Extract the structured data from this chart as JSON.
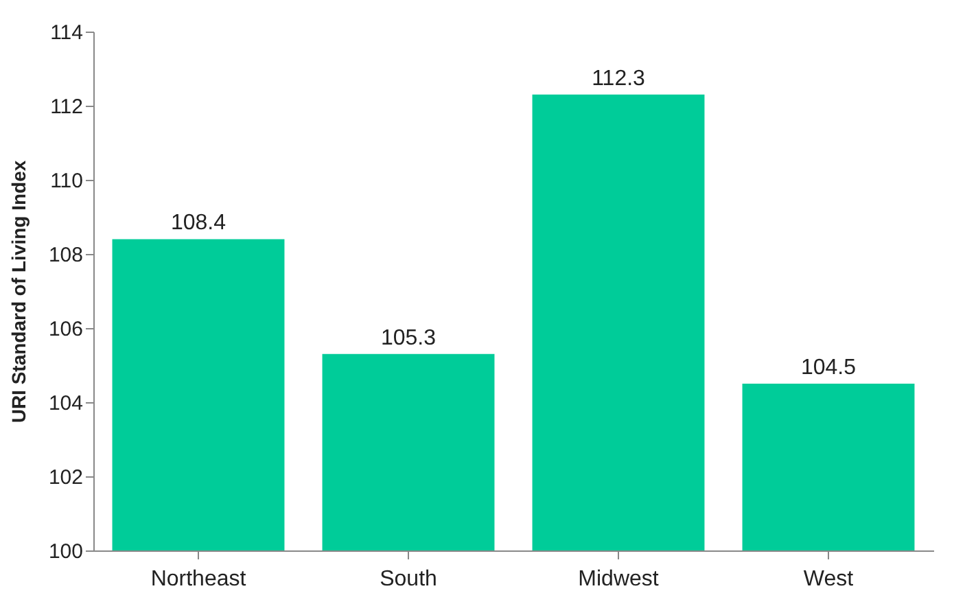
{
  "chart_data": {
    "type": "bar",
    "ylabel": "URI Standard of Living Index",
    "categories": [
      "Northeast",
      "South",
      "Midwest",
      "West"
    ],
    "values": [
      108.4,
      105.3,
      112.3,
      104.5
    ],
    "color": "#00cc99",
    "ylim": [
      100,
      114
    ],
    "yticks": [
      100,
      102,
      104,
      106,
      108,
      110,
      112,
      114
    ],
    "grid": false,
    "data_labels": true
  }
}
